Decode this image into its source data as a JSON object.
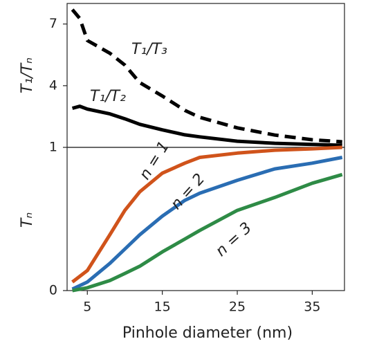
{
  "chart_data": [
    {
      "type": "line",
      "ylabel": "T₁/Tₙ",
      "x": [
        3,
        4,
        5,
        8,
        10,
        12,
        15,
        18,
        20,
        25,
        30,
        35,
        39
      ],
      "xlim": [
        2.3,
        39.3
      ],
      "ylim": [
        1,
        8
      ],
      "yticks": [
        1,
        4,
        7
      ],
      "series": [
        {
          "name": "T₁/T₃",
          "color": "#000000",
          "dashed": true,
          "values": [
            7.7,
            7.27,
            6.2,
            5.58,
            5.0,
            4.15,
            3.5,
            2.8,
            2.46,
            1.95,
            1.6,
            1.37,
            1.27
          ]
        },
        {
          "name": "T₁/T₂",
          "color": "#000000",
          "dashed": false,
          "values": [
            2.9,
            3.0,
            2.86,
            2.63,
            2.39,
            2.12,
            1.85,
            1.61,
            1.51,
            1.3,
            1.2,
            1.14,
            1.1
          ]
        }
      ]
    },
    {
      "type": "line",
      "ylabel": "Tₙ",
      "xlabel": "Pinhole diameter (nm)",
      "x": [
        3,
        5,
        8,
        10,
        12,
        15,
        18,
        20,
        25,
        30,
        35,
        39
      ],
      "xlim": [
        2.3,
        39.3
      ],
      "xticks": [
        5,
        15,
        25,
        35
      ],
      "ylim": [
        0,
        1
      ],
      "yticks": [
        0
      ],
      "series": [
        {
          "name": "n = 1",
          "color": "#d0531b",
          "values": [
            0.06,
            0.14,
            0.39,
            0.56,
            0.69,
            0.82,
            0.89,
            0.93,
            0.96,
            0.98,
            0.99,
            1.0
          ]
        },
        {
          "name": "n = 2",
          "color": "#2a6db3",
          "values": [
            0.01,
            0.06,
            0.19,
            0.29,
            0.39,
            0.52,
            0.63,
            0.68,
            0.77,
            0.85,
            0.89,
            0.93
          ]
        },
        {
          "name": "n = 3",
          "color": "#2e8b46",
          "values": [
            0.0,
            0.02,
            0.07,
            0.12,
            0.17,
            0.27,
            0.36,
            0.42,
            0.56,
            0.65,
            0.75,
            0.81
          ]
        }
      ]
    }
  ]
}
